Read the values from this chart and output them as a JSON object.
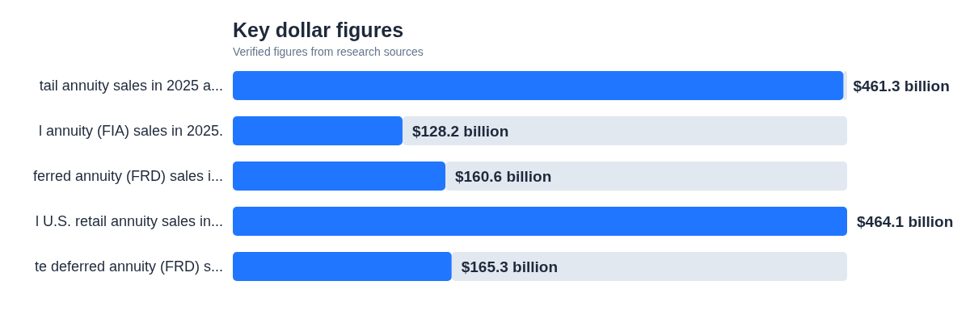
{
  "chart_data": {
    "type": "bar",
    "orientation": "horizontal",
    "title": "Key dollar figures",
    "subtitle": "Verified figures from research sources",
    "categories": [
      "tail annuity sales in 2025 a...",
      "l annuity (FIA) sales in 2025.",
      "ferred annuity (FRD) sales i...",
      "l U.S. retail annuity sales in...",
      "te deferred annuity (FRD) s..."
    ],
    "values": [
      461.3,
      128.2,
      160.6,
      464.1,
      165.3
    ],
    "value_labels": [
      "$461.3 billion",
      "$128.2 billion",
      "$160.6 billion",
      "$464.1 billion",
      "$165.3 billion"
    ],
    "color": "#2176ff",
    "grid": false
  }
}
